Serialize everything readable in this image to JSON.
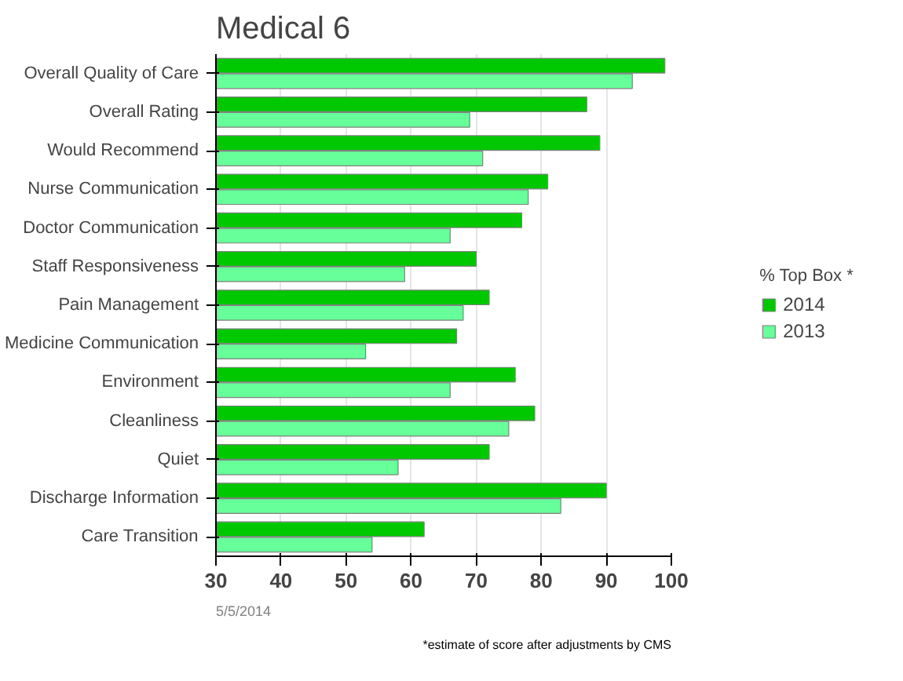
{
  "chart_data": {
    "type": "bar",
    "orientation": "horizontal",
    "title": "Medical 6",
    "legend_title": "% Top Box *",
    "categories": [
      "Overall Quality of Care",
      "Overall Rating",
      "Would Recommend",
      "Nurse Communication",
      "Doctor Communication",
      "Staff Responsiveness",
      "Pain Management",
      "Medicine Communication",
      "Environment",
      "Cleanliness",
      "Quiet",
      "Discharge Information",
      "Care Transition"
    ],
    "series": [
      {
        "name": "2014",
        "color": "#00c800",
        "values": [
          99,
          87,
          89,
          81,
          77,
          70,
          72,
          67,
          76,
          79,
          72,
          90,
          62
        ]
      },
      {
        "name": "2013",
        "color": "#66ff99",
        "values": [
          94,
          69,
          71,
          78,
          66,
          59,
          68,
          53,
          66,
          75,
          58,
          83,
          54
        ]
      }
    ],
    "xlim": [
      30,
      100
    ],
    "xticks": [
      30,
      40,
      50,
      60,
      70,
      80,
      90,
      100
    ],
    "grid": "x",
    "legend": "right",
    "annotations": [
      "5/5/2014",
      "*estimate of score after adjustments by CMS"
    ]
  }
}
